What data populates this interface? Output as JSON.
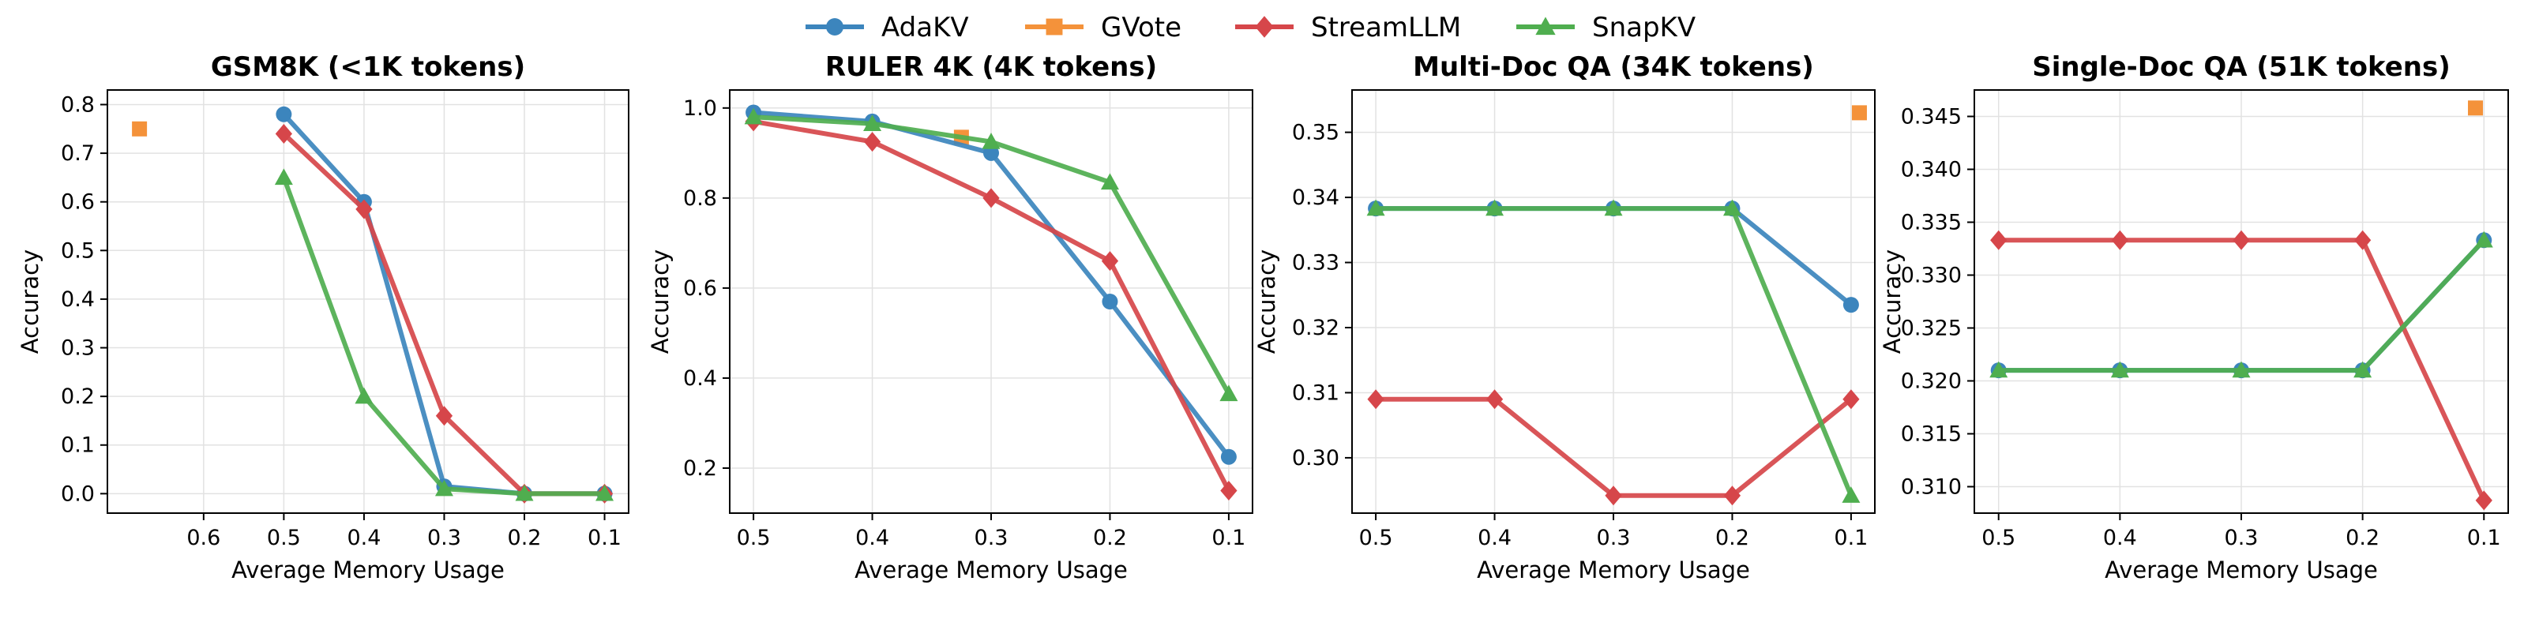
{
  "legend": [
    {
      "name": "AdaKV",
      "color": "#3c85bd",
      "marker": "circle"
    },
    {
      "name": "GVote",
      "color": "#f4923a",
      "marker": "square"
    },
    {
      "name": "StreamLLM",
      "color": "#d6464a",
      "marker": "diamond"
    },
    {
      "name": "SnapKV",
      "color": "#4fae4f",
      "marker": "triangle"
    }
  ],
  "chart_data": [
    {
      "type": "line",
      "title": "GSM8K (<1K tokens)",
      "xlabel": "Average Memory Usage",
      "ylabel": "Accuracy",
      "xlim": [
        0.72,
        0.07
      ],
      "ylim": [
        -0.04,
        0.83
      ],
      "xticks": [
        0.6,
        0.5,
        0.4,
        0.3,
        0.2,
        0.1
      ],
      "xtick_labels": [
        "0.6",
        "0.5",
        "0.4",
        "0.3",
        "0.2",
        "0.1"
      ],
      "yticks": [
        0.0,
        0.1,
        0.2,
        0.3,
        0.4,
        0.5,
        0.6,
        0.7,
        0.8
      ],
      "ytick_labels": [
        "0.0",
        "0.1",
        "0.2",
        "0.3",
        "0.4",
        "0.5",
        "0.6",
        "0.7",
        "0.8"
      ],
      "series": [
        {
          "name": "AdaKV",
          "x": [
            0.5,
            0.4,
            0.3,
            0.2,
            0.1
          ],
          "y": [
            0.78,
            0.6,
            0.015,
            0.0,
            0.0
          ]
        },
        {
          "name": "GVote",
          "x": [
            0.68
          ],
          "y": [
            0.75
          ]
        },
        {
          "name": "StreamLLM",
          "x": [
            0.5,
            0.4,
            0.3,
            0.2,
            0.1
          ],
          "y": [
            0.74,
            0.585,
            0.16,
            0.0,
            0.0
          ]
        },
        {
          "name": "SnapKV",
          "x": [
            0.5,
            0.4,
            0.3,
            0.2,
            0.1
          ],
          "y": [
            0.65,
            0.2,
            0.01,
            0.0,
            0.0
          ]
        }
      ]
    },
    {
      "type": "line",
      "title": "RULER 4K (4K tokens)",
      "xlabel": "Average Memory Usage",
      "ylabel": "Accuracy",
      "xlim": [
        0.52,
        0.08
      ],
      "ylim": [
        0.1,
        1.04
      ],
      "xticks": [
        0.5,
        0.4,
        0.3,
        0.2,
        0.1
      ],
      "xtick_labels": [
        "0.5",
        "0.4",
        "0.3",
        "0.2",
        "0.1"
      ],
      "yticks": [
        0.2,
        0.4,
        0.6,
        0.8,
        1.0
      ],
      "ytick_labels": [
        "0.2",
        "0.4",
        "0.6",
        "0.8",
        "1.0"
      ],
      "series": [
        {
          "name": "AdaKV",
          "x": [
            0.5,
            0.4,
            0.3,
            0.2,
            0.1
          ],
          "y": [
            0.99,
            0.97,
            0.9,
            0.57,
            0.225
          ]
        },
        {
          "name": "GVote",
          "x": [
            0.325
          ],
          "y": [
            0.935
          ]
        },
        {
          "name": "StreamLLM",
          "x": [
            0.5,
            0.4,
            0.3,
            0.2,
            0.1
          ],
          "y": [
            0.97,
            0.925,
            0.8,
            0.66,
            0.15
          ]
        },
        {
          "name": "SnapKV",
          "x": [
            0.5,
            0.4,
            0.3,
            0.2,
            0.1
          ],
          "y": [
            0.98,
            0.965,
            0.925,
            0.835,
            0.365
          ]
        }
      ]
    },
    {
      "type": "line",
      "title": "Multi-Doc QA (34K tokens)",
      "xlabel": "Average Memory Usage",
      "ylabel": "Accuracy",
      "xlim": [
        0.52,
        0.08
      ],
      "ylim": [
        0.2915,
        0.3565
      ],
      "xticks": [
        0.5,
        0.4,
        0.3,
        0.2,
        0.1
      ],
      "xtick_labels": [
        "0.5",
        "0.4",
        "0.3",
        "0.2",
        "0.1"
      ],
      "yticks": [
        0.3,
        0.31,
        0.32,
        0.33,
        0.34,
        0.35
      ],
      "ytick_labels": [
        "0.30",
        "0.31",
        "0.32",
        "0.33",
        "0.34",
        "0.35"
      ],
      "series": [
        {
          "name": "AdaKV",
          "x": [
            0.5,
            0.4,
            0.3,
            0.2,
            0.1
          ],
          "y": [
            0.3383,
            0.3383,
            0.3383,
            0.3383,
            0.3235
          ]
        },
        {
          "name": "GVote",
          "x": [
            0.093
          ],
          "y": [
            0.353
          ]
        },
        {
          "name": "StreamLLM",
          "x": [
            0.5,
            0.4,
            0.3,
            0.2,
            0.1
          ],
          "y": [
            0.309,
            0.309,
            0.2942,
            0.2942,
            0.309
          ]
        },
        {
          "name": "SnapKV",
          "x": [
            0.5,
            0.4,
            0.3,
            0.2,
            0.1
          ],
          "y": [
            0.3383,
            0.3383,
            0.3383,
            0.3383,
            0.2942
          ]
        }
      ]
    },
    {
      "type": "line",
      "title": "Single-Doc QA (51K tokens)",
      "xlabel": "Average Memory Usage",
      "ylabel": "Accuracy",
      "xlim": [
        0.52,
        0.08
      ],
      "ylim": [
        0.3075,
        0.3475
      ],
      "xticks": [
        0.5,
        0.4,
        0.3,
        0.2,
        0.1
      ],
      "xtick_labels": [
        "0.5",
        "0.4",
        "0.3",
        "0.2",
        "0.1"
      ],
      "yticks": [
        0.31,
        0.315,
        0.32,
        0.325,
        0.33,
        0.335,
        0.34,
        0.345
      ],
      "ytick_labels": [
        "0.310",
        "0.315",
        "0.320",
        "0.325",
        "0.330",
        "0.335",
        "0.340",
        "0.345"
      ],
      "series": [
        {
          "name": "AdaKV",
          "x": [
            0.5,
            0.4,
            0.3,
            0.2,
            0.1
          ],
          "y": [
            0.321,
            0.321,
            0.321,
            0.321,
            0.3333
          ]
        },
        {
          "name": "GVote",
          "x": [
            0.107
          ],
          "y": [
            0.3458
          ]
        },
        {
          "name": "StreamLLM",
          "x": [
            0.5,
            0.4,
            0.3,
            0.2,
            0.1
          ],
          "y": [
            0.3333,
            0.3333,
            0.3333,
            0.3333,
            0.3087
          ]
        },
        {
          "name": "SnapKV",
          "x": [
            0.5,
            0.4,
            0.3,
            0.2,
            0.1
          ],
          "y": [
            0.321,
            0.321,
            0.321,
            0.321,
            0.3333
          ]
        }
      ]
    }
  ]
}
